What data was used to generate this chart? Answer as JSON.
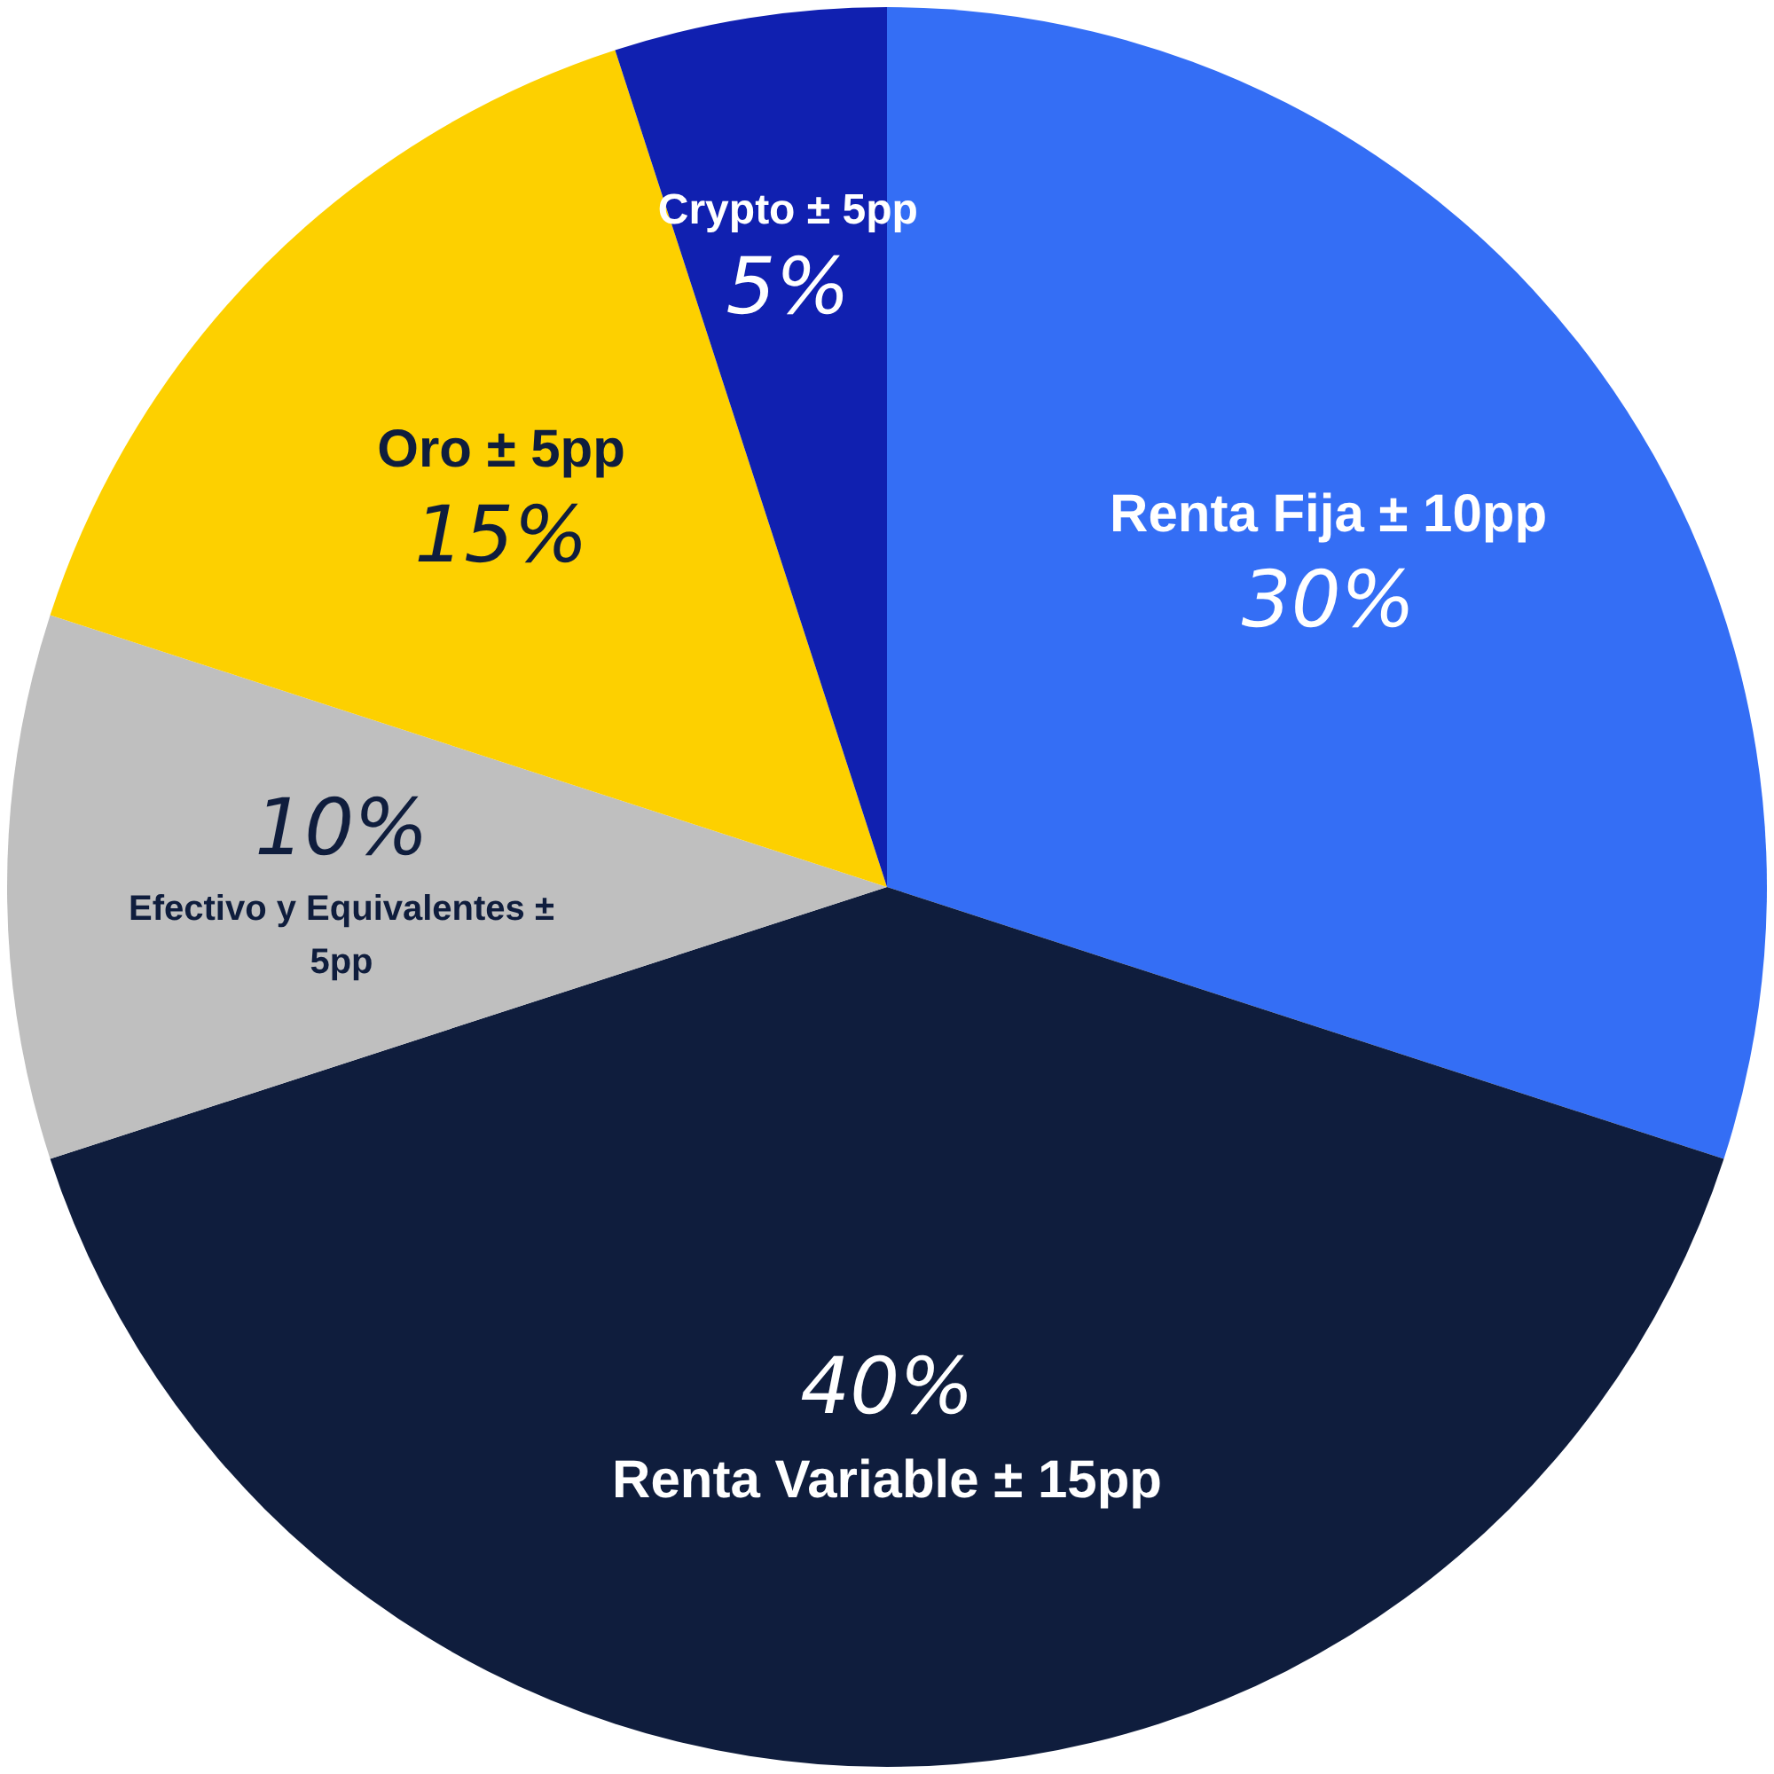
{
  "chart_data": {
    "type": "pie",
    "categories": [
      "Renta Fija ± 10pp",
      "Renta Variable ± 15pp",
      "Efectivo y Equivalentes ± 5pp",
      "Oro ± 5pp",
      "Crypto ± 5pp"
    ],
    "values": [
      30,
      40,
      10,
      15,
      5
    ],
    "value_labels": [
      "30%",
      "40%",
      "10%",
      "15%",
      "5%"
    ],
    "colors": [
      "#346ef5",
      "#0f1d3d",
      "#bfbfbf",
      "#fdd000",
      "#1020b0"
    ]
  }
}
